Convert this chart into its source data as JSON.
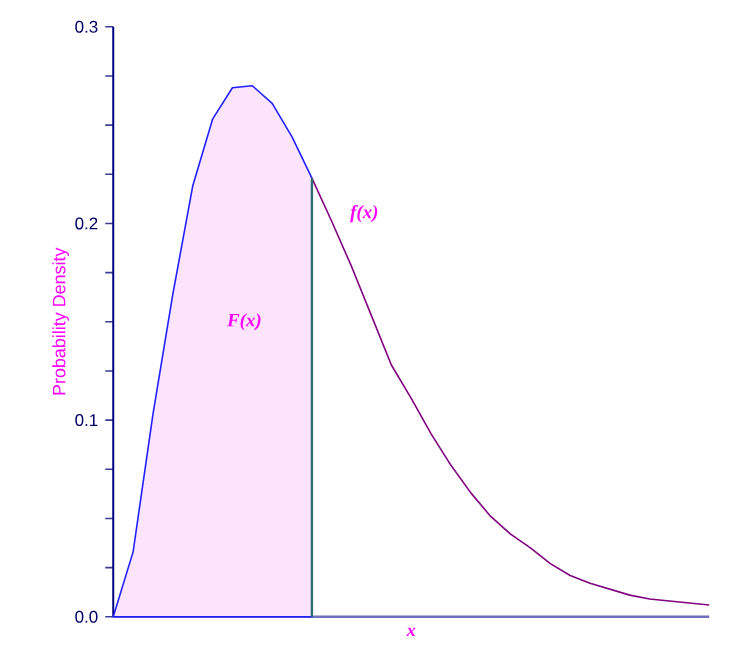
{
  "chart_data": {
    "type": "line",
    "xlabel": "x",
    "ylabel": "Probability Density",
    "categories": [
      null,
      null,
      null,
      null,
      null,
      null,
      null,
      null,
      null,
      null,
      null,
      null,
      null,
      null,
      null,
      null,
      null,
      null,
      null,
      null,
      null,
      null,
      null,
      null,
      null,
      null,
      null,
      null,
      null,
      null,
      null
    ],
    "series": [
      {
        "type": "area",
        "color": "#2020ff",
        "values": [
          0,
          0.033,
          0.103,
          0.164,
          0.219,
          0.253,
          0.269,
          0.27,
          0.261,
          0.244,
          0.223,
          null,
          null,
          null,
          null,
          null,
          null,
          null,
          null,
          null,
          null,
          null,
          null,
          null,
          null,
          null,
          null,
          null,
          null,
          null,
          null
        ]
      },
      {
        "color": "#800080",
        "values": [
          null,
          null,
          null,
          null,
          null,
          null,
          null,
          null,
          null,
          null,
          0.223,
          0.201,
          0.178,
          0.153,
          0.128,
          0.111,
          0.093,
          0.077,
          0.063,
          0.051,
          0.042,
          0.035,
          0.027,
          0.021,
          0.017,
          0.014,
          0.011,
          0.009,
          0.008,
          0.007,
          0.006
        ]
      }
    ],
    "ylim": [
      0,
      0.3
    ],
    "yticks": [
      {
        "value": 0,
        "label": "0.0"
      },
      {
        "value": 0.025,
        "label": null
      },
      {
        "value": 0.05,
        "label": null
      },
      {
        "value": 0.075,
        "label": null
      },
      0.1,
      {
        "value": 0.125,
        "label": null
      },
      {
        "value": 0.15,
        "label": null
      },
      {
        "value": 0.175,
        "label": null
      },
      0.2,
      {
        "value": 0.225,
        "label": null
      },
      {
        "value": 0.25,
        "label": null
      },
      {
        "value": 0.275,
        "label": null
      },
      0.3
    ],
    "annotations": [
      "f(x)",
      "F(x)"
    ]
  }
}
